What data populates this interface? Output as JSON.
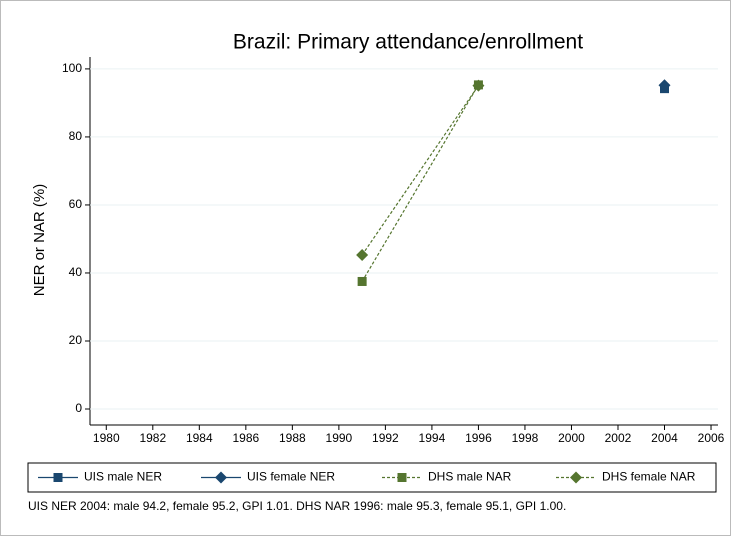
{
  "chart_data": {
    "type": "line",
    "title": "Brazil: Primary attendance/enrollment",
    "ylabel": "NER or NAR (%)",
    "note": "UIS NER 2004: male 94.2, female 95.2, GPI 1.01. DHS NAR 1996: male 95.3, female 95.1, GPI 1.00.",
    "xlim": [
      1979.3,
      2006.3
    ],
    "xticks": [
      1980,
      1982,
      1984,
      1986,
      1988,
      1990,
      1992,
      1994,
      1996,
      1998,
      2000,
      2002,
      2004,
      2006
    ],
    "ylim": [
      -4.7,
      103.5
    ],
    "yticks": [
      0,
      20,
      40,
      60,
      80,
      100
    ],
    "grid": true,
    "legend": "bottom",
    "series": [
      {
        "name": "UIS male NER",
        "color": "#1a476f",
        "marker": "square",
        "dashed": false,
        "x": [
          2004
        ],
        "values": [
          94.2
        ]
      },
      {
        "name": "UIS female NER",
        "color": "#1a476f",
        "marker": "diamond",
        "dashed": false,
        "x": [
          2004
        ],
        "values": [
          95.2
        ]
      },
      {
        "name": "DHS male NAR",
        "color": "#55752f",
        "marker": "square",
        "dashed": true,
        "x": [
          1991,
          1996
        ],
        "values": [
          37.5,
          95.3
        ]
      },
      {
        "name": "DHS female NAR",
        "color": "#55752f",
        "marker": "diamond",
        "dashed": true,
        "x": [
          1991,
          1996
        ],
        "values": [
          45.3,
          95.1
        ]
      }
    ]
  }
}
